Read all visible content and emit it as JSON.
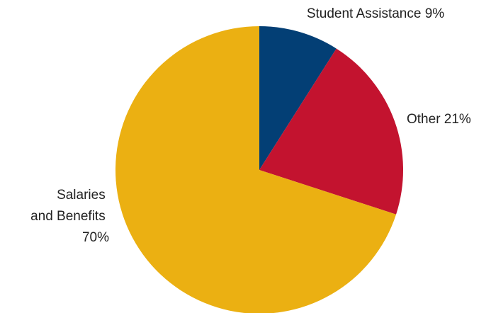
{
  "chart_data": {
    "type": "pie",
    "title": "",
    "slices": [
      {
        "label": "Student Assistance",
        "value": 9,
        "color": "#033F75"
      },
      {
        "label": "Other",
        "value": 21,
        "color": "#C3132F"
      },
      {
        "label": "Salaries and Benefits",
        "value": 70,
        "color": "#EBB012"
      }
    ],
    "labels": [
      {
        "lines": [
          "Student Assistance 9%"
        ]
      },
      {
        "lines": [
          "Other 21%"
        ]
      },
      {
        "lines": [
          "Salaries",
          "and Benefits",
          "70%"
        ]
      }
    ],
    "start_angle": "12 o'clock",
    "direction": "clockwise",
    "legend": "none"
  }
}
